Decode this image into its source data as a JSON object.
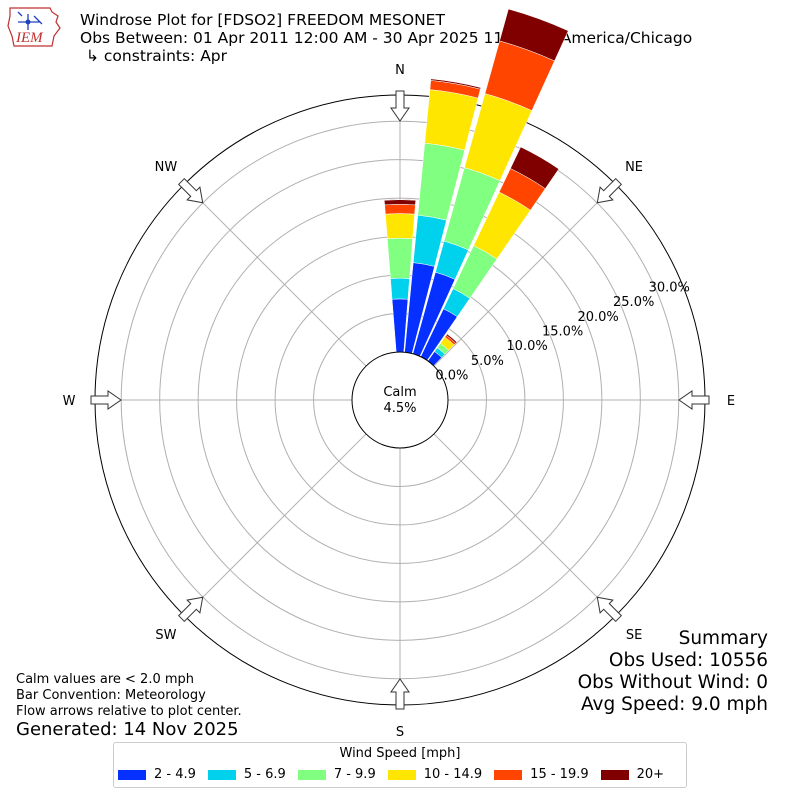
{
  "logo": {
    "text": "IEM",
    "icon": "iem-state-logo"
  },
  "header": {
    "title": "Windrose Plot for [FDSO2] FREEDOM MESONET",
    "subtitle": "Obs Between: 01 Apr 2011 12:00 AM - 30 Apr 2025 11:00 PM America/Chicago",
    "constraints": "↳ constraints: Apr"
  },
  "chart_data": {
    "type": "windrose",
    "directions": [
      "N",
      "NE",
      "E",
      "SE",
      "S",
      "SW",
      "W",
      "NW"
    ],
    "radial_ticks": [
      "0.0%",
      "5.0%",
      "10.0%",
      "15.0%",
      "20.0%",
      "25.0%",
      "30.0%"
    ],
    "radial_range": [
      0,
      30
    ],
    "calm": {
      "label": "Calm",
      "value": "4.5%"
    },
    "bins": [
      {
        "label": "2 - 4.9",
        "color": "#0530ff"
      },
      {
        "label": "5 - 6.9",
        "color": "#00d2ee"
      },
      {
        "label": "7 - 9.9",
        "color": "#80ff80"
      },
      {
        "label": "10 - 14.9",
        "color": "#ffe600"
      },
      {
        "label": "15 - 19.9",
        "color": "#ff4500"
      },
      {
        "label": "20+",
        "color": "#800000"
      }
    ],
    "sectors": [
      {
        "direction_deg": 0,
        "cumulative": [
          6.9,
          9.6,
          14.8,
          18.0,
          19.2,
          19.8
        ]
      },
      {
        "direction_deg": 10,
        "cumulative": [
          11.7,
          17.9,
          27.3,
          34.3,
          35.5,
          35.7
        ]
      },
      {
        "direction_deg": 20,
        "cumulative": [
          11.0,
          15.2,
          25.1,
          35.1,
          42.2,
          46.5
        ]
      },
      {
        "direction_deg": 30,
        "cumulative": [
          6.9,
          9.8,
          16.0,
          23.7,
          27.1,
          30.2
        ]
      },
      {
        "direction_deg": 40,
        "cumulative": [
          1.5,
          2.1,
          2.8,
          3.8,
          4.1,
          4.3
        ]
      }
    ],
    "legend_title": "Wind Speed [mph]",
    "legend_position": "bottom-center"
  },
  "summary": {
    "title": "Summary",
    "obs_used": "Obs Used: 10556",
    "obs_without_wind": "Obs Without Wind: 0",
    "avg_speed": "Avg Speed: 9.0 mph"
  },
  "notes": {
    "calm": "Calm values are < 2.0 mph",
    "convention": "Bar Convention: Meteorology",
    "flow": "Flow arrows relative to plot center."
  },
  "generated": "Generated: 14 Nov 2025"
}
